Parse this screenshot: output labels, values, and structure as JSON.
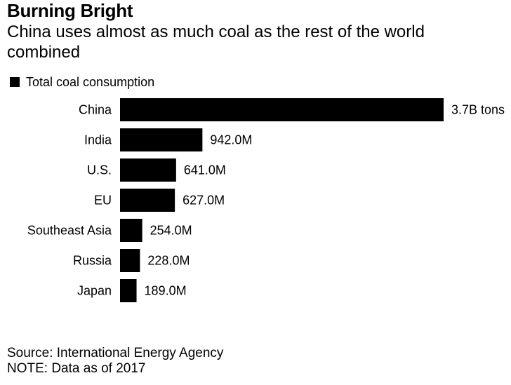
{
  "title": "Burning Bright",
  "subtitle": "China uses almost as much coal as the rest of the world combined",
  "footer": {
    "source": "Source: International Energy Agency",
    "note": "NOTE: Data as of 2017"
  },
  "colors": {
    "bar": "#000000",
    "text": "#000000",
    "background": "#ffffff"
  },
  "chart_data": {
    "type": "bar",
    "orientation": "horizontal",
    "categories": [
      "China",
      "India",
      "U.S.",
      "EU",
      "Southeast Asia",
      "Russia",
      "Japan"
    ],
    "series": [
      {
        "name": "Total coal consumption",
        "values": [
          3700,
          942,
          641,
          627,
          254,
          228,
          189
        ],
        "labels": [
          "3.7B tons",
          "942.0M",
          "641.0M",
          "627.0M",
          "254.0M",
          "228.0M",
          "189.0M"
        ]
      }
    ],
    "unit": "million tons",
    "xlim": [
      0,
      3700
    ],
    "grid": false,
    "legend": "top-left"
  }
}
